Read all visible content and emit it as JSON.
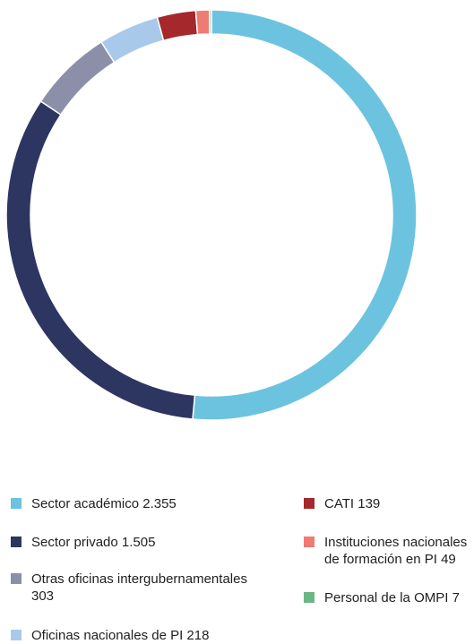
{
  "chart_data": {
    "type": "pie",
    "variant": "donut",
    "title": "",
    "slices": [
      {
        "label": "Sector académico",
        "value": 2355,
        "display_value": "2.355",
        "color": "#6cc3df"
      },
      {
        "label": "Sector privado",
        "value": 1505,
        "display_value": "1.505",
        "color": "#2d3561"
      },
      {
        "label": "Otras oficinas intergubernamentales",
        "value": 303,
        "display_value": "303",
        "color": "#8b8fa8"
      },
      {
        "label": "Oficinas nacionales de PI",
        "value": 218,
        "display_value": "218",
        "color": "#a9c9ea"
      },
      {
        "label": "CATI",
        "value": 139,
        "display_value": "139",
        "color": "#a4282c"
      },
      {
        "label": "Instituciones nacionales de formación en PI",
        "value": 49,
        "display_value": "49",
        "color": "#ee7b74"
      },
      {
        "label": "Personal de la OMPI",
        "value": 7,
        "display_value": "7",
        "color": "#6bb686"
      }
    ],
    "legend_placement": "bottom"
  },
  "legend": {
    "items": [
      {
        "text": "Sector académico 2.355",
        "color": "#6cc3df"
      },
      {
        "text": "Sector privado 1.505",
        "color": "#2d3561"
      },
      {
        "text": "Otras oficinas intergubernamentales 303",
        "color": "#8b8fa8"
      },
      {
        "text": "Oficinas nacionales de PI 218",
        "color": "#a9c9ea"
      },
      {
        "text": "CATI 139",
        "color": "#a4282c"
      },
      {
        "text": "Instituciones nacionales de formación en PI 49",
        "color": "#ee7b74"
      },
      {
        "text": "Personal de la OMPI 7",
        "color": "#6bb686"
      }
    ]
  }
}
